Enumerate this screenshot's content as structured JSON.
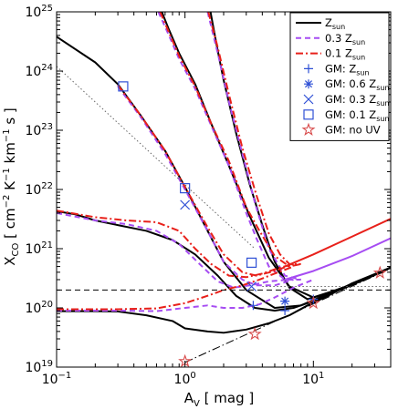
{
  "chart_data": {
    "type": "line",
    "x_scale": "log",
    "y_scale": "log",
    "xlim": [
      0.1,
      40
    ],
    "ylim": [
      1e+19,
      1e+25
    ],
    "xlabel": {
      "base": "A",
      "sub": "V",
      "rest": " [ mag ]"
    },
    "ylabel": "X_CO [ cm^-2 K^-1 km^-1 s ]",
    "ylabel_parts": {
      "base": "X",
      "sub": "CO",
      "rest1": " [ cm",
      "sup1": "−2",
      "rest2": " K",
      "sup2": "−1",
      "rest3": " km",
      "sup3": "−1",
      "rest4": " s ]"
    },
    "x_ticks": [
      {
        "value": 0.1,
        "base": "10",
        "exp": "−1"
      },
      {
        "value": 1,
        "base": "10",
        "exp": "0"
      },
      {
        "value": 10,
        "base": "10",
        "exp": "1"
      }
    ],
    "y_ticks": [
      {
        "value": 1e+19,
        "base": "10",
        "exp": "19"
      },
      {
        "value": 1e+20,
        "base": "10",
        "exp": "20"
      },
      {
        "value": 1e+21,
        "base": "10",
        "exp": "21"
      },
      {
        "value": 1e+22,
        "base": "10",
        "exp": "22"
      },
      {
        "value": 1e+23,
        "base": "10",
        "exp": "23"
      },
      {
        "value": 1e+24,
        "base": "10",
        "exp": "24"
      },
      {
        "value": 1e+25,
        "base": "10",
        "exp": "25"
      }
    ],
    "legend_position": "top-right",
    "legend": [
      {
        "key": "zsun",
        "base": "Z",
        "sub": "sun",
        "prefix": "",
        "style": "solid",
        "color": "#000000"
      },
      {
        "key": "z03",
        "base": "Z",
        "sub": "sun",
        "prefix": "0.3 ",
        "style": "dashed",
        "color": "#a64cf2"
      },
      {
        "key": "z01",
        "base": "Z",
        "sub": "sun",
        "prefix": "0.1 ",
        "style": "dashdot",
        "color": "#e8201a"
      },
      {
        "key": "gm1",
        "base": "Z",
        "sub": "sun",
        "prefix": "GM: ",
        "marker": "plus",
        "color": "#2f50d6"
      },
      {
        "key": "gm06",
        "base": "Z",
        "sub": "sun",
        "prefix": "GM: 0.6 ",
        "marker": "asterisk",
        "color": "#2f50d6"
      },
      {
        "key": "gm03",
        "base": "Z",
        "sub": "sun",
        "prefix": "GM: 0.3 ",
        "marker": "cross",
        "color": "#2f50d6"
      },
      {
        "key": "gm01",
        "base": "Z",
        "sub": "sun",
        "prefix": "GM: 0.1 ",
        "marker": "square",
        "color": "#2f50d6"
      },
      {
        "key": "gmnouv",
        "base": "GM: no UV",
        "sub": "",
        "prefix": "",
        "marker": "star",
        "color": "#d84a4a"
      }
    ],
    "series": [
      {
        "group": "zsun",
        "style": "solid",
        "color": "#000000",
        "x": [
          0.1,
          0.2,
          0.3,
          0.45,
          0.7,
          1.0,
          1.5,
          2.0,
          3.0,
          5.0,
          8.0,
          12.0,
          20.0,
          40.0
        ],
        "y": [
          3.8e+24,
          1.4e+24,
          6e+23,
          1.8e+23,
          4.5e+22,
          1.1e+22,
          2e+21,
          6e+20,
          2e+20,
          1e+20,
          1.1e+20,
          1.6e+20,
          2.5e+20,
          4.8e+20
        ]
      },
      {
        "group": "zsun",
        "style": "solid",
        "color": "#000000",
        "x": [
          0.66,
          0.75,
          0.9,
          1.2,
          1.6,
          2.2,
          3.2,
          4.5,
          6.5,
          10.0,
          15.0,
          25.0,
          40.0
        ],
        "y": [
          1e+25,
          5e+24,
          2e+24,
          6e+23,
          1.3e+23,
          2.5e+22,
          3.5e+21,
          7e+20,
          2.3e+20,
          1.5e+20,
          1.9e+20,
          3e+20,
          4.8e+20
        ]
      },
      {
        "group": "zsun",
        "style": "solid",
        "color": "#000000",
        "x": [
          1.58,
          1.75,
          2.0,
          2.5,
          3.2,
          4.0,
          5.0,
          6.5,
          9.0,
          14.0,
          25.0,
          40.0
        ],
        "y": [
          1e+25,
          3e+24,
          7e+23,
          9e+22,
          1.2e+22,
          2.5e+21,
          6e+20,
          2.2e+20,
          1.4e+20,
          1.9e+20,
          3e+20,
          4.8e+20
        ]
      },
      {
        "group": "zsun",
        "style": "solid",
        "color": "#000000",
        "x": [
          0.1,
          0.14,
          0.2,
          0.3,
          0.5,
          0.8,
          1.2,
          1.8,
          2.5,
          3.5,
          5.0,
          7.0,
          10.0,
          15.0,
          25.0,
          40.0
        ],
        "y": [
          4.3e+21,
          3.8e+21,
          3e+21,
          2.5e+21,
          2e+21,
          1.4e+21,
          8e+20,
          3.5e+20,
          1.6e+20,
          1e+20,
          9e+19,
          1e+20,
          1.3e+20,
          1.9e+20,
          3e+20,
          4.8e+20
        ]
      },
      {
        "group": "zsun",
        "style": "solid",
        "color": "#000000",
        "x": [
          0.1,
          0.2,
          0.3,
          0.5,
          0.8,
          1.0,
          1.5,
          2.0,
          3.0,
          4.5,
          6.5,
          9.0,
          13.0,
          20.0,
          40.0
        ],
        "y": [
          8.8e+19,
          8.8e+19,
          8.7e+19,
          7.5e+19,
          6e+19,
          4.5e+19,
          4e+19,
          3.8e+19,
          4.3e+19,
          5.5e+19,
          7.5e+19,
          1.1e+20,
          1.6e+20,
          2.6e+20,
          4.8e+20
        ]
      },
      {
        "group": "z03",
        "style": "dashed",
        "color": "#a64cf2",
        "x": [
          0.62,
          0.75,
          0.9,
          1.2,
          1.6,
          2.2,
          3.0,
          3.6,
          4.5,
          6.0,
          8.0
        ],
        "y": [
          1e+25,
          4e+24,
          1.6e+24,
          5e+23,
          1.2e+23,
          2.5e+22,
          4e+21,
          1.5e+21,
          5e+20,
          3e+20,
          3e+20
        ]
      },
      {
        "group": "z03",
        "style": "dashed",
        "color": "#a64cf2",
        "x": [
          1.5,
          1.8,
          2.2,
          2.8,
          3.5,
          4.5,
          6.0,
          8.0
        ],
        "y": [
          1e+25,
          2e+24,
          3e+23,
          4e+22,
          6e+21,
          1e+21,
          3.5e+20,
          3e+20
        ]
      },
      {
        "group": "z03",
        "style": "dashed",
        "color": "#a64cf2",
        "x": [
          0.3,
          0.45,
          0.7,
          1.0,
          1.5,
          2.0,
          2.8,
          3.6,
          5.0,
          7.0
        ],
        "y": [
          5.5e+23,
          1.7e+23,
          4e+22,
          1e+22,
          2e+21,
          6e+20,
          3e+20,
          2.4e+20,
          2.4e+20,
          3e+20
        ]
      },
      {
        "group": "z03",
        "style": "dashed",
        "color": "#a64cf2",
        "x": [
          0.1,
          0.2,
          0.35,
          0.6,
          0.9,
          1.3,
          1.8,
          2.4,
          3.2,
          4.5,
          6.5
        ],
        "y": [
          4e+21,
          3e+21,
          2.6e+21,
          2e+21,
          1.2e+21,
          5.5e+20,
          2.8e+20,
          2.2e+20,
          2.4e+20,
          2.8e+20,
          3e+20
        ]
      },
      {
        "group": "z03",
        "style": "dashed",
        "color": "#a64cf2",
        "x": [
          0.1,
          0.3,
          0.6,
          1.0,
          1.5,
          2.0,
          2.8,
          3.8,
          5.0,
          7.0,
          10.0
        ],
        "y": [
          9e+19,
          9e+19,
          8.8e+19,
          1e+20,
          1.1e+20,
          1e+20,
          1e+20,
          1.15e+20,
          1.5e+20,
          2.2e+20,
          3e+20
        ]
      },
      {
        "group": "z03",
        "style": "solid",
        "color": "#a64cf2",
        "x": [
          6.0,
          10.0,
          20.0,
          40.0
        ],
        "y": [
          3e+20,
          4.2e+20,
          7.5e+20,
          1.5e+21
        ]
      },
      {
        "group": "z01",
        "style": "dashdot",
        "color": "#e8201a",
        "x": [
          0.64,
          0.75,
          0.9,
          1.2,
          1.6,
          2.2,
          3.0,
          3.8,
          5.0,
          6.5,
          8.0
        ],
        "y": [
          1e+25,
          4.5e+24,
          1.8e+24,
          5.5e+23,
          1.3e+23,
          3e+22,
          5e+21,
          2e+21,
          7.5e+20,
          5e+20,
          5.5e+20
        ]
      },
      {
        "group": "z01",
        "style": "dashdot",
        "color": "#e8201a",
        "x": [
          1.52,
          1.8,
          2.2,
          2.8,
          3.6,
          4.5,
          5.5,
          6.5,
          8.0
        ],
        "y": [
          1e+25,
          2.5e+24,
          4e+23,
          5e+22,
          8e+21,
          1.8e+21,
          8e+20,
          5.5e+20,
          5.5e+20
        ]
      },
      {
        "group": "z01",
        "style": "dashdot",
        "color": "#e8201a",
        "x": [
          0.3,
          0.45,
          0.7,
          1.0,
          1.5,
          2.0,
          2.8,
          3.6,
          5.0,
          7.0
        ],
        "y": [
          5.8e+23,
          1.8e+23,
          4.5e+22,
          1.1e+22,
          2.3e+21,
          8e+20,
          4e+20,
          3.5e+20,
          4.2e+20,
          5.5e+20
        ]
      },
      {
        "group": "z01",
        "style": "dashdot",
        "color": "#e8201a",
        "x": [
          0.1,
          0.2,
          0.35,
          0.6,
          0.9,
          1.2,
          1.6,
          2.2,
          3.0,
          4.0,
          5.5,
          7.0
        ],
        "y": [
          4.4e+21,
          3.4e+21,
          3e+21,
          2.8e+21,
          2e+21,
          1e+21,
          5.5e+20,
          3.5e+20,
          3.3e+20,
          3.8e+20,
          4.8e+20,
          5.5e+20
        ]
      },
      {
        "group": "z01",
        "style": "dashdot",
        "color": "#e8201a",
        "x": [
          0.1,
          0.3,
          0.6,
          1.0,
          1.5,
          2.0,
          2.8,
          3.8,
          5.0,
          7.0
        ],
        "y": [
          9.5e+19,
          9.5e+19,
          9.8e+19,
          1.2e+20,
          1.6e+20,
          2e+20,
          2.4e+20,
          3e+20,
          3.8e+20,
          5e+20
        ]
      },
      {
        "group": "z01",
        "style": "solid",
        "color": "#e8201a",
        "x": [
          6.0,
          10.0,
          20.0,
          40.0
        ],
        "y": [
          5e+20,
          8e+20,
          1.6e+21,
          3.2e+21
        ]
      },
      {
        "group": "ref",
        "style": "dotted",
        "color": "#666666",
        "x": [
          0.1,
          1.0,
          3.5
        ],
        "y": [
          1.2e+24,
          1.2e+22,
          1e+21
        ]
      },
      {
        "group": "ref",
        "style": "dashed",
        "color": "#000000",
        "x": [
          0.1,
          40.0
        ],
        "y": [
          2e+20,
          2e+20
        ]
      },
      {
        "group": "ref",
        "style": "dotted",
        "color": "#666666",
        "x": [
          4.0,
          40.0
        ],
        "y": [
          2.3e+20,
          2.3e+20
        ]
      },
      {
        "group": "ref",
        "style": "longdashdot",
        "color": "#000000",
        "x": [
          1.0,
          40.0
        ],
        "y": [
          1.2e+19,
          4.6e+20
        ]
      }
    ],
    "markers": [
      {
        "marker": "square",
        "color": "#2f50d6",
        "x": [
          0.33,
          1.0,
          3.3
        ],
        "y": [
          5.5e+23,
          1.05e+22,
          5.8e+20
        ]
      },
      {
        "marker": "cross",
        "color": "#2f50d6",
        "x": [
          1.0,
          3.3
        ],
        "y": [
          5.5e+21,
          2.3e+20
        ]
      },
      {
        "marker": "asterisk",
        "color": "#2f50d6",
        "x": [
          6.0
        ],
        "y": [
          1.3e+20
        ]
      },
      {
        "marker": "plus",
        "color": "#2f50d6",
        "x": [
          3.4,
          6.0,
          10.0
        ],
        "y": [
          1.1e+20,
          9e+19,
          1.4e+20
        ]
      },
      {
        "marker": "star",
        "color": "#d84a4a",
        "x": [
          1.0,
          3.5,
          10.0,
          33.0
        ],
        "y": [
          1.25e+19,
          3.6e+19,
          1.2e+20,
          3.9e+20
        ]
      }
    ]
  }
}
